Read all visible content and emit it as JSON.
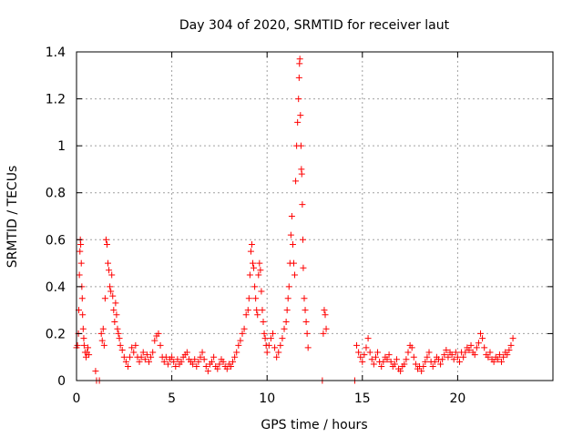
{
  "chart_data": {
    "type": "scatter",
    "title": "Day 304 of 2020, SRMTID for receiver laut",
    "xlabel": "GPS time / hours",
    "ylabel": "SRMTID / TECUs",
    "xlim": [
      0,
      25
    ],
    "ylim": [
      0,
      1.4
    ],
    "x_ticks": [
      0,
      5,
      10,
      15,
      20
    ],
    "x_tick_labels": [
      "0",
      "5",
      "10",
      "15",
      "20"
    ],
    "y_ticks": [
      0,
      0.2,
      0.4,
      0.6,
      0.8,
      1.0,
      1.2,
      1.4
    ],
    "y_tick_labels": [
      "0",
      "0.2",
      "0.4",
      "0.6",
      "0.8",
      "1",
      "1.2",
      "1.4"
    ],
    "grid": true,
    "marker": "+",
    "marker_color": "#ff0000",
    "series": [
      {
        "name": "SRMTID",
        "points": [
          [
            0.0,
            0.14
          ],
          [
            0.05,
            0.15
          ],
          [
            0.1,
            0.2
          ],
          [
            0.12,
            0.3
          ],
          [
            0.15,
            0.45
          ],
          [
            0.18,
            0.55
          ],
          [
            0.2,
            0.6
          ],
          [
            0.22,
            0.58
          ],
          [
            0.25,
            0.5
          ],
          [
            0.28,
            0.4
          ],
          [
            0.3,
            0.35
          ],
          [
            0.32,
            0.28
          ],
          [
            0.35,
            0.22
          ],
          [
            0.38,
            0.18
          ],
          [
            0.4,
            0.15
          ],
          [
            0.45,
            0.12
          ],
          [
            0.5,
            0.1
          ],
          [
            0.55,
            0.12
          ],
          [
            0.6,
            0.14
          ],
          [
            0.65,
            0.11
          ],
          [
            1.0,
            0.04
          ],
          [
            1.05,
            0.0
          ],
          [
            1.2,
            0.0
          ],
          [
            1.3,
            0.2
          ],
          [
            1.35,
            0.17
          ],
          [
            1.4,
            0.22
          ],
          [
            1.45,
            0.15
          ],
          [
            1.5,
            0.35
          ],
          [
            1.55,
            0.6
          ],
          [
            1.6,
            0.58
          ],
          [
            1.65,
            0.5
          ],
          [
            1.7,
            0.47
          ],
          [
            1.75,
            0.4
          ],
          [
            1.8,
            0.38
          ],
          [
            1.85,
            0.45
          ],
          [
            1.9,
            0.36
          ],
          [
            1.95,
            0.3
          ],
          [
            2.0,
            0.25
          ],
          [
            2.05,
            0.33
          ],
          [
            2.1,
            0.28
          ],
          [
            2.15,
            0.22
          ],
          [
            2.2,
            0.2
          ],
          [
            2.25,
            0.18
          ],
          [
            2.3,
            0.15
          ],
          [
            2.4,
            0.13
          ],
          [
            2.5,
            0.1
          ],
          [
            2.6,
            0.08
          ],
          [
            2.7,
            0.06
          ],
          [
            2.8,
            0.1
          ],
          [
            2.9,
            0.14
          ],
          [
            3.0,
            0.12
          ],
          [
            3.1,
            0.15
          ],
          [
            3.2,
            0.1
          ],
          [
            3.3,
            0.08
          ],
          [
            3.4,
            0.1
          ],
          [
            3.5,
            0.12
          ],
          [
            3.6,
            0.09
          ],
          [
            3.7,
            0.11
          ],
          [
            3.8,
            0.08
          ],
          [
            3.9,
            0.1
          ],
          [
            4.0,
            0.12
          ],
          [
            4.1,
            0.17
          ],
          [
            4.2,
            0.19
          ],
          [
            4.3,
            0.2
          ],
          [
            4.4,
            0.15
          ],
          [
            4.5,
            0.1
          ],
          [
            4.6,
            0.08
          ],
          [
            4.7,
            0.1
          ],
          [
            4.8,
            0.07
          ],
          [
            4.9,
            0.09
          ],
          [
            5.0,
            0.1
          ],
          [
            5.1,
            0.08
          ],
          [
            5.2,
            0.06
          ],
          [
            5.3,
            0.09
          ],
          [
            5.4,
            0.07
          ],
          [
            5.5,
            0.08
          ],
          [
            5.6,
            0.1
          ],
          [
            5.7,
            0.11
          ],
          [
            5.8,
            0.12
          ],
          [
            5.9,
            0.09
          ],
          [
            6.0,
            0.08
          ],
          [
            6.1,
            0.07
          ],
          [
            6.2,
            0.09
          ],
          [
            6.3,
            0.06
          ],
          [
            6.4,
            0.08
          ],
          [
            6.5,
            0.1
          ],
          [
            6.6,
            0.12
          ],
          [
            6.7,
            0.09
          ],
          [
            6.8,
            0.06
          ],
          [
            6.9,
            0.04
          ],
          [
            7.0,
            0.07
          ],
          [
            7.1,
            0.08
          ],
          [
            7.2,
            0.1
          ],
          [
            7.3,
            0.06
          ],
          [
            7.4,
            0.05
          ],
          [
            7.5,
            0.07
          ],
          [
            7.6,
            0.09
          ],
          [
            7.7,
            0.08
          ],
          [
            7.8,
            0.06
          ],
          [
            7.9,
            0.05
          ],
          [
            8.0,
            0.07
          ],
          [
            8.1,
            0.06
          ],
          [
            8.2,
            0.08
          ],
          [
            8.3,
            0.1
          ],
          [
            8.4,
            0.12
          ],
          [
            8.5,
            0.15
          ],
          [
            8.6,
            0.17
          ],
          [
            8.7,
            0.2
          ],
          [
            8.8,
            0.22
          ],
          [
            8.9,
            0.28
          ],
          [
            9.0,
            0.3
          ],
          [
            9.05,
            0.35
          ],
          [
            9.1,
            0.45
          ],
          [
            9.15,
            0.55
          ],
          [
            9.2,
            0.58
          ],
          [
            9.25,
            0.5
          ],
          [
            9.3,
            0.48
          ],
          [
            9.35,
            0.4
          ],
          [
            9.4,
            0.35
          ],
          [
            9.45,
            0.3
          ],
          [
            9.5,
            0.28
          ],
          [
            9.55,
            0.45
          ],
          [
            9.6,
            0.5
          ],
          [
            9.65,
            0.47
          ],
          [
            9.7,
            0.38
          ],
          [
            9.75,
            0.3
          ],
          [
            9.8,
            0.25
          ],
          [
            9.85,
            0.2
          ],
          [
            9.9,
            0.18
          ],
          [
            9.95,
            0.15
          ],
          [
            10.0,
            0.12
          ],
          [
            10.1,
            0.15
          ],
          [
            10.2,
            0.18
          ],
          [
            10.3,
            0.2
          ],
          [
            10.4,
            0.14
          ],
          [
            10.5,
            0.1
          ],
          [
            10.6,
            0.12
          ],
          [
            10.7,
            0.15
          ],
          [
            10.8,
            0.18
          ],
          [
            10.9,
            0.22
          ],
          [
            11.0,
            0.25
          ],
          [
            11.05,
            0.3
          ],
          [
            11.1,
            0.35
          ],
          [
            11.15,
            0.4
          ],
          [
            11.2,
            0.5
          ],
          [
            11.25,
            0.62
          ],
          [
            11.3,
            0.7
          ],
          [
            11.35,
            0.58
          ],
          [
            11.4,
            0.5
          ],
          [
            11.45,
            0.45
          ],
          [
            11.5,
            0.85
          ],
          [
            11.55,
            1.0
          ],
          [
            11.6,
            1.1
          ],
          [
            11.65,
            1.2
          ],
          [
            11.68,
            1.29
          ],
          [
            11.7,
            1.35
          ],
          [
            11.72,
            1.37
          ],
          [
            11.75,
            1.13
          ],
          [
            11.78,
            1.0
          ],
          [
            11.8,
            0.9
          ],
          [
            11.82,
            0.88
          ],
          [
            11.85,
            0.75
          ],
          [
            11.88,
            0.6
          ],
          [
            11.9,
            0.48
          ],
          [
            11.95,
            0.35
          ],
          [
            12.0,
            0.3
          ],
          [
            12.05,
            0.25
          ],
          [
            12.1,
            0.2
          ],
          [
            12.15,
            0.14
          ],
          [
            12.9,
            0.0
          ],
          [
            12.95,
            0.2
          ],
          [
            13.0,
            0.3
          ],
          [
            13.05,
            0.28
          ],
          [
            13.1,
            0.22
          ],
          [
            14.6,
            0.0
          ],
          [
            14.7,
            0.15
          ],
          [
            14.8,
            0.12
          ],
          [
            14.9,
            0.1
          ],
          [
            15.0,
            0.08
          ],
          [
            15.1,
            0.11
          ],
          [
            15.2,
            0.14
          ],
          [
            15.3,
            0.18
          ],
          [
            15.4,
            0.12
          ],
          [
            15.5,
            0.09
          ],
          [
            15.6,
            0.07
          ],
          [
            15.7,
            0.1
          ],
          [
            15.8,
            0.12
          ],
          [
            15.9,
            0.08
          ],
          [
            16.0,
            0.06
          ],
          [
            16.1,
            0.08
          ],
          [
            16.2,
            0.1
          ],
          [
            16.3,
            0.09
          ],
          [
            16.4,
            0.11
          ],
          [
            16.5,
            0.08
          ],
          [
            16.6,
            0.06
          ],
          [
            16.7,
            0.07
          ],
          [
            16.8,
            0.09
          ],
          [
            16.9,
            0.05
          ],
          [
            17.0,
            0.04
          ],
          [
            17.1,
            0.06
          ],
          [
            17.2,
            0.07
          ],
          [
            17.3,
            0.09
          ],
          [
            17.4,
            0.12
          ],
          [
            17.5,
            0.15
          ],
          [
            17.6,
            0.14
          ],
          [
            17.7,
            0.1
          ],
          [
            17.8,
            0.07
          ],
          [
            17.9,
            0.05
          ],
          [
            18.0,
            0.06
          ],
          [
            18.1,
            0.04
          ],
          [
            18.2,
            0.06
          ],
          [
            18.3,
            0.08
          ],
          [
            18.4,
            0.1
          ],
          [
            18.5,
            0.12
          ],
          [
            18.6,
            0.08
          ],
          [
            18.7,
            0.06
          ],
          [
            18.8,
            0.08
          ],
          [
            18.9,
            0.1
          ],
          [
            19.0,
            0.09
          ],
          [
            19.1,
            0.07
          ],
          [
            19.2,
            0.09
          ],
          [
            19.3,
            0.11
          ],
          [
            19.4,
            0.13
          ],
          [
            19.5,
            0.1
          ],
          [
            19.6,
            0.12
          ],
          [
            19.7,
            0.11
          ],
          [
            19.8,
            0.09
          ],
          [
            19.9,
            0.12
          ],
          [
            20.0,
            0.1
          ],
          [
            20.1,
            0.08
          ],
          [
            20.2,
            0.12
          ],
          [
            20.3,
            0.1
          ],
          [
            20.4,
            0.12
          ],
          [
            20.5,
            0.14
          ],
          [
            20.6,
            0.13
          ],
          [
            20.7,
            0.15
          ],
          [
            20.8,
            0.12
          ],
          [
            20.9,
            0.11
          ],
          [
            21.0,
            0.14
          ],
          [
            21.1,
            0.16
          ],
          [
            21.2,
            0.2
          ],
          [
            21.3,
            0.18
          ],
          [
            21.4,
            0.14
          ],
          [
            21.5,
            0.11
          ],
          [
            21.6,
            0.1
          ],
          [
            21.7,
            0.12
          ],
          [
            21.8,
            0.09
          ],
          [
            21.9,
            0.08
          ],
          [
            22.0,
            0.1
          ],
          [
            22.1,
            0.09
          ],
          [
            22.2,
            0.11
          ],
          [
            22.3,
            0.08
          ],
          [
            22.4,
            0.1
          ],
          [
            22.5,
            0.12
          ],
          [
            22.6,
            0.11
          ],
          [
            22.7,
            0.13
          ],
          [
            22.8,
            0.15
          ],
          [
            22.9,
            0.18
          ]
        ]
      }
    ]
  }
}
